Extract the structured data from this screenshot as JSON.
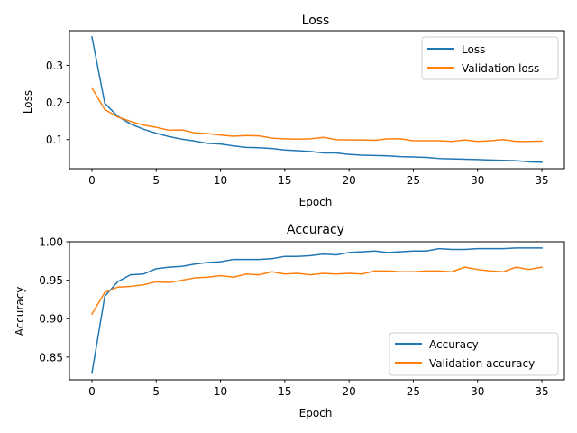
{
  "colors": {
    "series1": "#1f77b4",
    "series2": "#ff7f0e"
  },
  "chart_data": [
    {
      "type": "line",
      "title": "Loss",
      "xlabel": "Epoch",
      "ylabel": "Loss",
      "xlim": [
        -1.75,
        36.75
      ],
      "ylim": [
        0.0215,
        0.3935
      ],
      "xticks": [
        0,
        5,
        10,
        15,
        20,
        25,
        30,
        35
      ],
      "xtick_labels": [
        "0",
        "5",
        "10",
        "15",
        "20",
        "25",
        "30",
        "35"
      ],
      "yticks": [
        0.1,
        0.2,
        0.3
      ],
      "ytick_labels": [
        "0.1",
        "0.2",
        "0.3"
      ],
      "legend_position": "upper-right",
      "x": [
        0,
        1,
        2,
        3,
        4,
        5,
        6,
        7,
        8,
        9,
        10,
        11,
        12,
        13,
        14,
        15,
        16,
        17,
        18,
        19,
        20,
        21,
        22,
        23,
        24,
        25,
        26,
        27,
        28,
        29,
        30,
        31,
        32,
        33,
        34,
        35
      ],
      "series": [
        {
          "name": "Loss",
          "values": [
            0.377,
            0.198,
            0.163,
            0.142,
            0.128,
            0.117,
            0.108,
            0.101,
            0.096,
            0.09,
            0.088,
            0.083,
            0.079,
            0.078,
            0.076,
            0.072,
            0.07,
            0.068,
            0.064,
            0.064,
            0.06,
            0.058,
            0.057,
            0.056,
            0.054,
            0.053,
            0.052,
            0.049,
            0.048,
            0.047,
            0.046,
            0.045,
            0.044,
            0.043,
            0.04,
            0.039
          ]
        },
        {
          "name": "Validation loss",
          "values": [
            0.239,
            0.181,
            0.161,
            0.149,
            0.139,
            0.133,
            0.125,
            0.126,
            0.118,
            0.116,
            0.112,
            0.109,
            0.111,
            0.11,
            0.104,
            0.102,
            0.101,
            0.102,
            0.106,
            0.1,
            0.099,
            0.099,
            0.098,
            0.102,
            0.102,
            0.097,
            0.097,
            0.097,
            0.095,
            0.099,
            0.095,
            0.097,
            0.1,
            0.095,
            0.095,
            0.096
          ]
        }
      ]
    },
    {
      "type": "line",
      "title": "Accuracy",
      "xlabel": "Epoch",
      "ylabel": "Accuracy",
      "xlim": [
        -1.75,
        36.75
      ],
      "ylim": [
        0.8205,
        1.0
      ],
      "xticks": [
        0,
        5,
        10,
        15,
        20,
        25,
        30,
        35
      ],
      "xtick_labels": [
        "0",
        "5",
        "10",
        "15",
        "20",
        "25",
        "30",
        "35"
      ],
      "yticks": [
        0.85,
        0.9,
        0.95,
        1.0
      ],
      "ytick_labels": [
        "0.85",
        "0.90",
        "0.95",
        "1.00"
      ],
      "legend_position": "lower-right",
      "x": [
        0,
        1,
        2,
        3,
        4,
        5,
        6,
        7,
        8,
        9,
        10,
        11,
        12,
        13,
        14,
        15,
        16,
        17,
        18,
        19,
        20,
        21,
        22,
        23,
        24,
        25,
        26,
        27,
        28,
        29,
        30,
        31,
        32,
        33,
        34,
        35
      ],
      "series": [
        {
          "name": "Accuracy",
          "values": [
            0.829,
            0.929,
            0.948,
            0.957,
            0.958,
            0.965,
            0.967,
            0.968,
            0.971,
            0.973,
            0.974,
            0.977,
            0.977,
            0.977,
            0.978,
            0.981,
            0.981,
            0.982,
            0.984,
            0.983,
            0.986,
            0.987,
            0.988,
            0.986,
            0.987,
            0.988,
            0.988,
            0.991,
            0.99,
            0.99,
            0.991,
            0.991,
            0.991,
            0.992,
            0.992,
            0.992
          ]
        },
        {
          "name": "Validation accuracy",
          "values": [
            0.906,
            0.934,
            0.941,
            0.942,
            0.944,
            0.948,
            0.947,
            0.95,
            0.953,
            0.954,
            0.956,
            0.954,
            0.958,
            0.957,
            0.961,
            0.958,
            0.959,
            0.957,
            0.959,
            0.958,
            0.959,
            0.958,
            0.962,
            0.962,
            0.961,
            0.961,
            0.962,
            0.962,
            0.961,
            0.967,
            0.964,
            0.962,
            0.961,
            0.967,
            0.964,
            0.967
          ]
        }
      ]
    }
  ]
}
